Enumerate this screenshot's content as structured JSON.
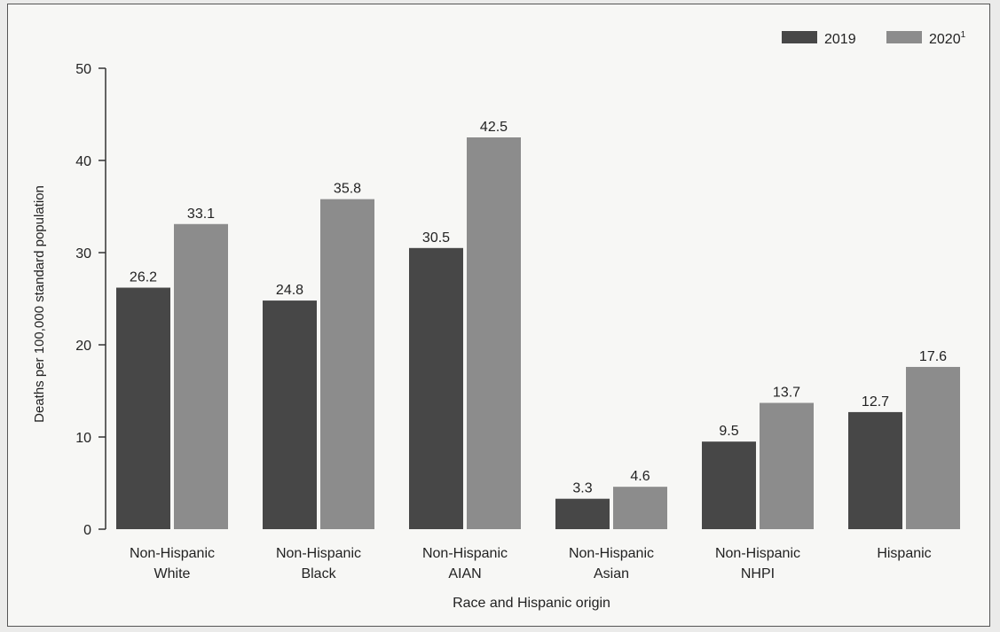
{
  "chart_data": {
    "type": "bar",
    "title": "",
    "xlabel": "Race and Hispanic origin",
    "ylabel": "Deaths per 100,000 standard population",
    "ylim": [
      0,
      50
    ],
    "yticks": [
      0,
      10,
      20,
      30,
      40,
      50
    ],
    "grid": false,
    "legend_position": "top-right",
    "categories": [
      [
        "Non-Hispanic",
        "White"
      ],
      [
        "Non-Hispanic",
        "Black"
      ],
      [
        "Non-Hispanic",
        "AIAN"
      ],
      [
        "Non-Hispanic",
        "Asian"
      ],
      [
        "Non-Hispanic",
        "NHPI"
      ],
      [
        "Hispanic"
      ]
    ],
    "series": [
      {
        "name": "2019",
        "color": "#474747",
        "values": [
          26.2,
          24.8,
          30.5,
          3.3,
          9.5,
          12.7
        ]
      },
      {
        "name": "2020",
        "name_superscript": "1",
        "color": "#8c8c8c",
        "values": [
          33.1,
          35.8,
          42.5,
          4.6,
          13.7,
          17.6
        ]
      }
    ]
  }
}
